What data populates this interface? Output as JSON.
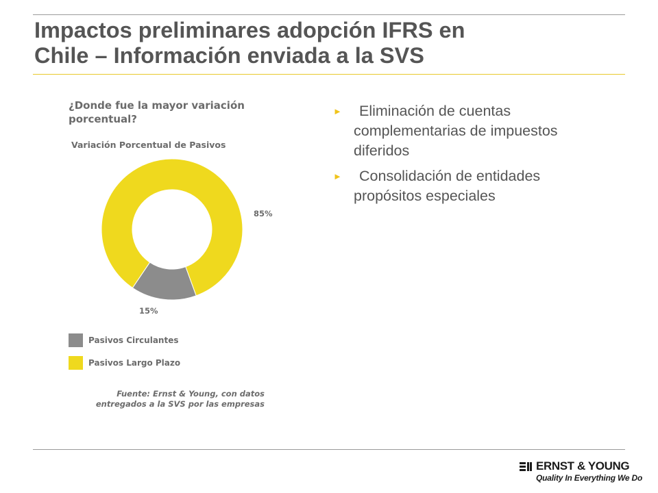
{
  "slide": {
    "title_lines": [
      "Impactos preliminares adopción IFRS en",
      "Chile – Información enviada a la SVS"
    ]
  },
  "chart_data": {
    "type": "pie",
    "donut": true,
    "question_lines": [
      "¿Donde fue la mayor variación",
      "porcentual?"
    ],
    "title": "Variación Porcentual de Pasivos",
    "categories": [
      "Pasivos Circulantes",
      "Pasivos Largo Plazo"
    ],
    "values": [
      15,
      85
    ],
    "data_labels": [
      "15%",
      "85%"
    ],
    "colors": [
      "#8c8c8c",
      "#efd91e"
    ],
    "legend_position": "bottom",
    "source_lines": [
      "Fuente: Ernst & Young, con datos",
      "entregados a la SVS por las empresas"
    ]
  },
  "bullets": [
    {
      "lines": [
        "Eliminación de cuentas",
        "complementarias de impuestos",
        "diferidos"
      ]
    },
    {
      "lines": [
        "Consolidación de entidades",
        "propósitos especiales"
      ]
    }
  ],
  "bullet_marker": "►",
  "logo": {
    "name": "ERNST & YOUNG",
    "tagline": "Quality In Everything We Do"
  },
  "colors": {
    "accent_yellow": "#e8c92a",
    "bullet_marker": "#f0c41b",
    "text_gray": "#555555"
  }
}
